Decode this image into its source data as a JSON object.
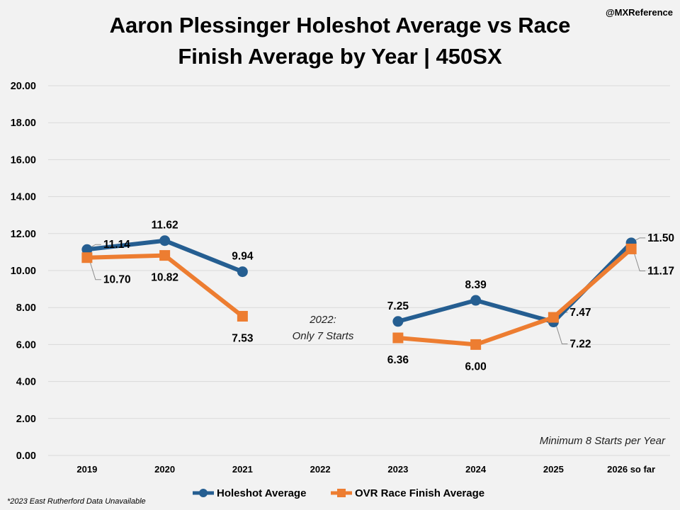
{
  "handle": "@MXReference",
  "chart_data": {
    "type": "line",
    "title_line1": "Aaron Plessinger Holeshot Average vs Race",
    "title_line2": "Finish Average by Year | 450SX",
    "categories": [
      "2019",
      "2020",
      "2021",
      "2022",
      "2023",
      "2024",
      "2025",
      "2026 so far"
    ],
    "ylim": [
      0,
      20
    ],
    "yticks": [
      "0.00",
      "2.00",
      "4.00",
      "6.00",
      "8.00",
      "10.00",
      "12.00",
      "14.00",
      "16.00",
      "18.00",
      "20.00"
    ],
    "grid": true,
    "legend_position": "bottom",
    "series": [
      {
        "name": "Holeshot Average",
        "color": "#255e91",
        "marker": "circle",
        "values": [
          11.14,
          11.62,
          9.94,
          null,
          7.25,
          8.39,
          7.22,
          11.5
        ],
        "labels": [
          "11.14",
          "11.62",
          "9.94",
          "",
          "7.25",
          "8.39",
          "7.22",
          "11.50"
        ]
      },
      {
        "name": "OVR Race Finish Average",
        "color": "#ed7d31",
        "marker": "square",
        "values": [
          10.7,
          10.82,
          7.53,
          null,
          6.36,
          6.0,
          7.47,
          11.17
        ],
        "labels": [
          "10.70",
          "10.82",
          "7.53",
          "",
          "6.36",
          "6.00",
          "7.47",
          "11.17"
        ]
      }
    ],
    "annotations": {
      "gap_line1": "2022:",
      "gap_line2": "Only 7 Starts",
      "minimum": "Minimum 8 Starts per Year",
      "footnote": "*2023 East Rutherford Data Unavailable"
    }
  }
}
